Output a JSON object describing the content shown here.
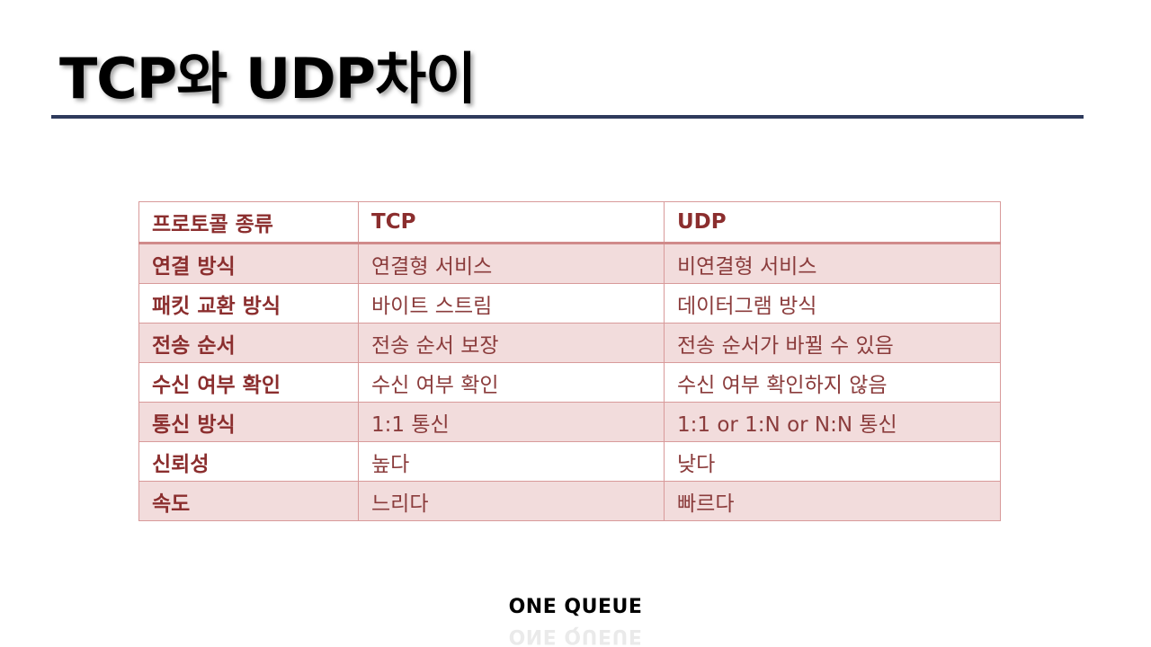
{
  "slide": {
    "title": "TCP와 UDP차이",
    "footer": "ONE QUEUE"
  },
  "table": {
    "headers": [
      "프로토콜 종류",
      "TCP",
      "UDP"
    ],
    "rows": [
      [
        "연결 방식",
        "연결형 서비스",
        "비연결형 서비스"
      ],
      [
        "패킷 교환 방식",
        "바이트 스트림",
        "데이터그램 방식"
      ],
      [
        "전송 순서",
        "전송 순서 보장",
        "전송 순서가 바뀔 수 있음"
      ],
      [
        "수신 여부 확인",
        "수신 여부 확인",
        "수신 여부 확인하지 않음"
      ],
      [
        "통신 방식",
        "1:1 통신",
        "1:1 or 1:N or N:N 통신"
      ],
      [
        "신뢰성",
        "높다",
        "낮다"
      ],
      [
        "속도",
        "느리다",
        "빠르다"
      ]
    ]
  },
  "colors": {
    "rule": "#2e3a5c",
    "table_text": "#8b3c3c",
    "table_border": "#d89a9a",
    "row_shade": "#f2dcdc"
  }
}
